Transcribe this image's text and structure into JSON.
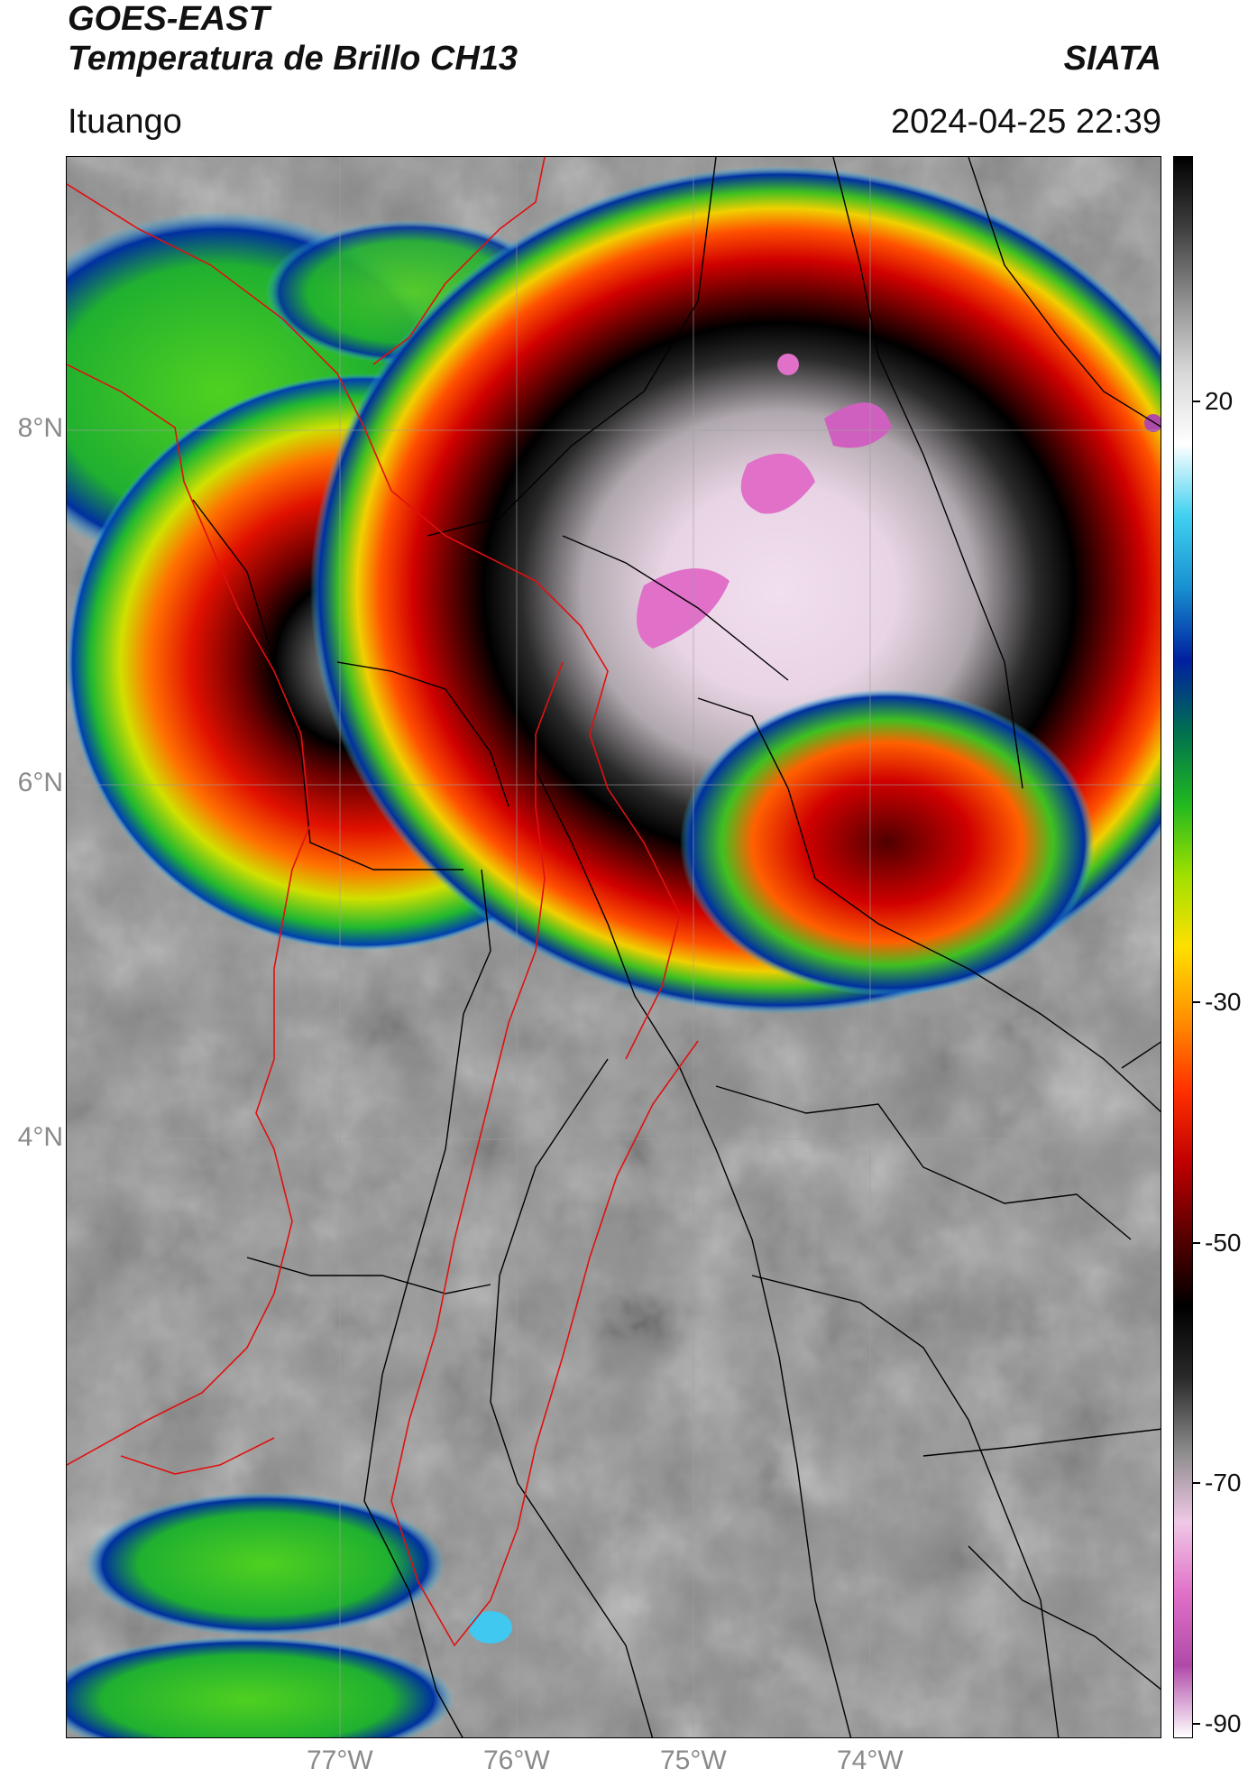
{
  "header": {
    "satellite": "GOES-EAST",
    "product": "Temperatura de Brillo CH13",
    "org": "SIATA",
    "location": "Ituango",
    "datetime": "2024-04-25 22:39"
  },
  "map": {
    "lat_labels": [
      "8°N",
      "6°N",
      "4°N"
    ],
    "lon_labels": [
      "77°W",
      "76°W",
      "75°W",
      "74°W"
    ],
    "colors": {
      "land_grey": "#8c8c8c",
      "border_department": "#000000",
      "border_region": "#e01010"
    },
    "features": [
      "convective-storm-ituango-east",
      "convective-storm-choco-west",
      "cloud-band-northwest",
      "storm-cell-southeast",
      "cloud-band-southwest"
    ]
  },
  "colorbar": {
    "tick_labels": [
      "20",
      "-30",
      "-50",
      "-70",
      "-90"
    ],
    "range": [
      -90,
      40
    ],
    "stops": [
      {
        "color": "#ffffff"
      },
      {
        "color": "#b04aa8"
      },
      {
        "color": "#e070c8"
      },
      {
        "color": "#f0c8e6"
      },
      {
        "color": "#8a8a8a"
      },
      {
        "color": "#2a2a2a"
      },
      {
        "color": "#000000"
      },
      {
        "color": "#5a0000"
      },
      {
        "color": "#c00000"
      },
      {
        "color": "#ff3000"
      },
      {
        "color": "#ff9000"
      },
      {
        "color": "#ffe000"
      },
      {
        "color": "#a0e000"
      },
      {
        "color": "#20b820"
      },
      {
        "color": "#007050"
      },
      {
        "color": "#0020a0"
      },
      {
        "color": "#1890d0"
      },
      {
        "color": "#40d0f0"
      },
      {
        "color": "#ffffff"
      },
      {
        "color": "#d8d8d8"
      },
      {
        "color": "#909090"
      },
      {
        "color": "#404040"
      },
      {
        "color": "#000000"
      }
    ]
  }
}
